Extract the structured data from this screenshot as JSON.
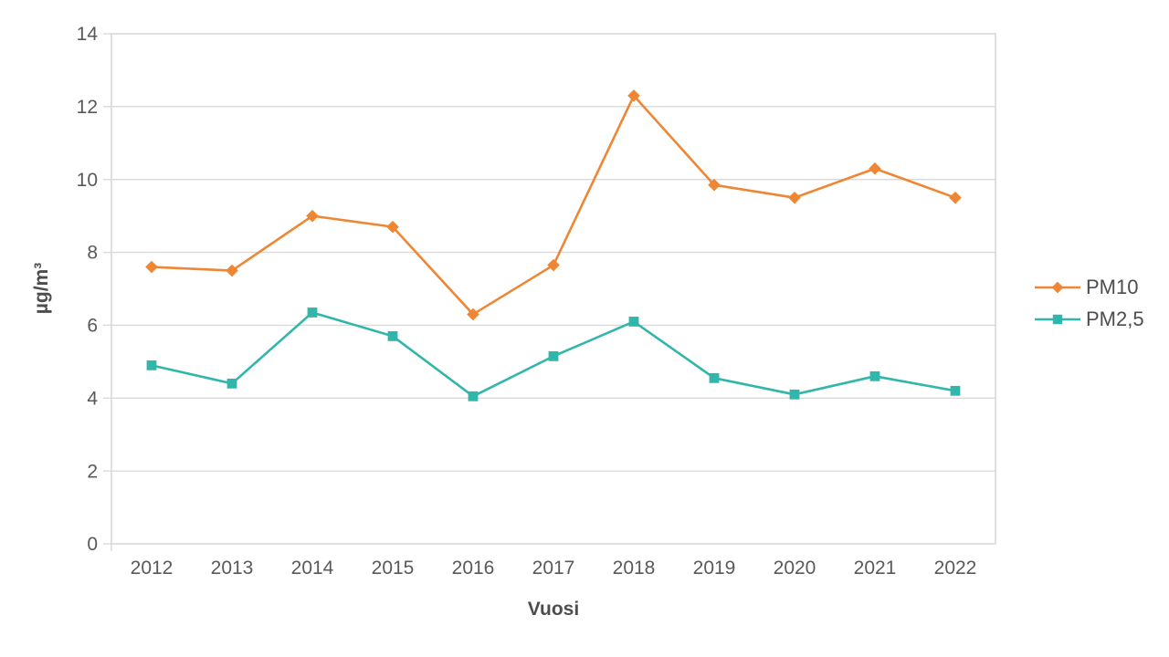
{
  "chart_data": {
    "type": "line",
    "title": "",
    "xlabel": "Vuosi",
    "ylabel": "µg/m³",
    "categories": [
      "2012",
      "2013",
      "2014",
      "2015",
      "2016",
      "2017",
      "2018",
      "2019",
      "2020",
      "2021",
      "2022"
    ],
    "series": [
      {
        "name": "PM10",
        "marker": "diamond",
        "color": "#EE8634",
        "values": [
          7.6,
          7.5,
          9.0,
          8.7,
          6.3,
          7.65,
          12.3,
          9.85,
          9.5,
          10.3,
          9.5
        ]
      },
      {
        "name": "PM2,5",
        "marker": "square",
        "color": "#31B6AC",
        "values": [
          4.9,
          4.4,
          6.35,
          5.7,
          4.05,
          5.15,
          6.1,
          4.55,
          4.1,
          4.6,
          4.2
        ]
      }
    ],
    "ylim": [
      0,
      14
    ],
    "ytick_step": 2,
    "grid": true,
    "legend_position": "right",
    "colors": {
      "grid": "#D9D9D9",
      "axis_line": "#D9D9D9",
      "tick_label": "#595959",
      "axis_title": "#4D4D4D",
      "legend_text": "#4D4D4D",
      "background": "#FFFFFF"
    }
  }
}
